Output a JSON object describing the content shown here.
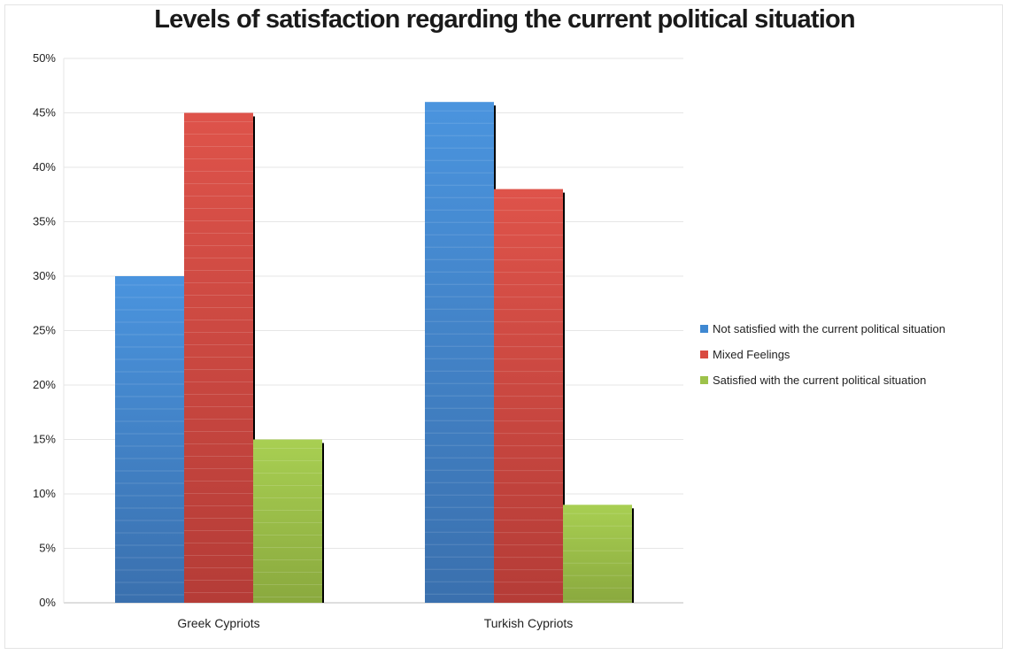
{
  "chart_data": {
    "type": "bar",
    "title": "Levels of satisfaction regarding the current political situation",
    "xlabel": "",
    "ylabel": "",
    "categories": [
      "Greek Cypriots",
      "Turkish Cypriots"
    ],
    "series": [
      {
        "name": "Not satisfied with the current political situation",
        "values": [
          30,
          46
        ],
        "color": "#3f88d2"
      },
      {
        "name": "Mixed Feelings",
        "values": [
          45,
          38
        ],
        "color": "#d94a40"
      },
      {
        "name": "Satisfied with the current political situation",
        "values": [
          15,
          9
        ],
        "color": "#9dc24a"
      }
    ],
    "ylim": [
      0,
      50
    ],
    "yticks": [
      "0%",
      "5%",
      "10%",
      "15%",
      "20%",
      "25%",
      "30%",
      "35%",
      "40%",
      "45%",
      "50%"
    ],
    "grid": true,
    "legend_position": "right"
  }
}
